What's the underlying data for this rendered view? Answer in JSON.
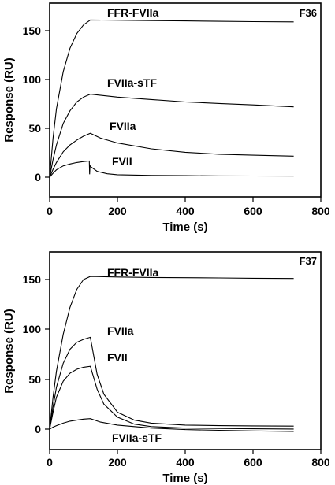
{
  "chart_data": [
    {
      "type": "line",
      "panel_label": "F36",
      "xlabel": "Time (s)",
      "ylabel": "Response (RU)",
      "xlim": [
        0,
        800
      ],
      "ylim": [
        -10,
        175
      ],
      "xticks": [
        0,
        200,
        400,
        600,
        800
      ],
      "yticks": [
        0,
        50,
        100,
        150
      ],
      "grid": false,
      "series": [
        {
          "name": "FFR-FVIIa",
          "x": [
            0,
            10,
            20,
            40,
            60,
            80,
            100,
            120,
            200,
            300,
            400,
            500,
            600,
            720
          ],
          "y": [
            0,
            40,
            70,
            108,
            132,
            147,
            156,
            161,
            160.7,
            160.3,
            160,
            159.6,
            159.3,
            159
          ]
        },
        {
          "name": "FVIIa-sTF",
          "x": [
            0,
            10,
            20,
            40,
            60,
            80,
            100,
            120,
            200,
            300,
            400,
            500,
            600,
            720
          ],
          "y": [
            0,
            18,
            33,
            55,
            68,
            77,
            82,
            85,
            82,
            79.5,
            77,
            75.5,
            74,
            72
          ]
        },
        {
          "name": "FVIIa",
          "x": [
            0,
            10,
            20,
            40,
            60,
            80,
            100,
            120,
            150,
            200,
            300,
            400,
            500,
            600,
            720
          ],
          "y": [
            0,
            8,
            15,
            26,
            33,
            38,
            42,
            45,
            40,
            35,
            29,
            25.5,
            23.5,
            22.5,
            21.5
          ]
        },
        {
          "name": "FVII",
          "x": [
            0,
            10,
            20,
            40,
            60,
            80,
            100,
            117,
            118,
            119,
            120,
            140,
            170,
            200,
            300,
            400,
            500,
            600,
            720
          ],
          "y": [
            0,
            4,
            7.5,
            11.5,
            13.5,
            15,
            16,
            16.5,
            3,
            12,
            11,
            6,
            3.5,
            2.5,
            1.8,
            1.5,
            1.3,
            1.2,
            1.1
          ]
        }
      ]
    },
    {
      "type": "line",
      "panel_label": "F37",
      "xlabel": "Time (s)",
      "ylabel": "Response (RU)",
      "xlim": [
        0,
        800
      ],
      "ylim": [
        -10,
        165
      ],
      "xticks": [
        0,
        200,
        400,
        600,
        800
      ],
      "yticks": [
        0,
        50,
        100,
        150
      ],
      "grid": false,
      "series": [
        {
          "name": "FFR-FVIIa",
          "x": [
            0,
            10,
            20,
            40,
            60,
            80,
            100,
            120,
            200,
            300,
            400,
            500,
            600,
            720
          ],
          "y": [
            0,
            32,
            58,
            95,
            122,
            140,
            150,
            153,
            152.5,
            152,
            151.8,
            151.5,
            151.2,
            151
          ]
        },
        {
          "name": "FVIIa",
          "x": [
            0,
            10,
            20,
            40,
            60,
            80,
            100,
            120,
            140,
            160,
            200,
            250,
            300,
            400,
            500,
            600,
            720
          ],
          "y": [
            0,
            22,
            42,
            66,
            80,
            87,
            90,
            92,
            55,
            35,
            17,
            9,
            6,
            4,
            3.5,
            3.2,
            3
          ]
        },
        {
          "name": "FVII",
          "x": [
            0,
            10,
            20,
            40,
            60,
            80,
            100,
            120,
            140,
            160,
            200,
            250,
            300,
            400,
            500,
            600,
            720
          ],
          "y": [
            0,
            17,
            32,
            48,
            56,
            60,
            62,
            63,
            40,
            25,
            12,
            5,
            2.5,
            1,
            0.6,
            0.3,
            0.1
          ]
        },
        {
          "name": "FVIIa-sTF",
          "x": [
            0,
            10,
            20,
            40,
            60,
            80,
            100,
            120,
            150,
            200,
            300,
            400,
            500,
            600,
            720
          ],
          "y": [
            0,
            2,
            3.5,
            6,
            8,
            9,
            10,
            10.5,
            7,
            4,
            1,
            -0.5,
            -1.2,
            -1.8,
            -2.3
          ]
        }
      ]
    }
  ]
}
